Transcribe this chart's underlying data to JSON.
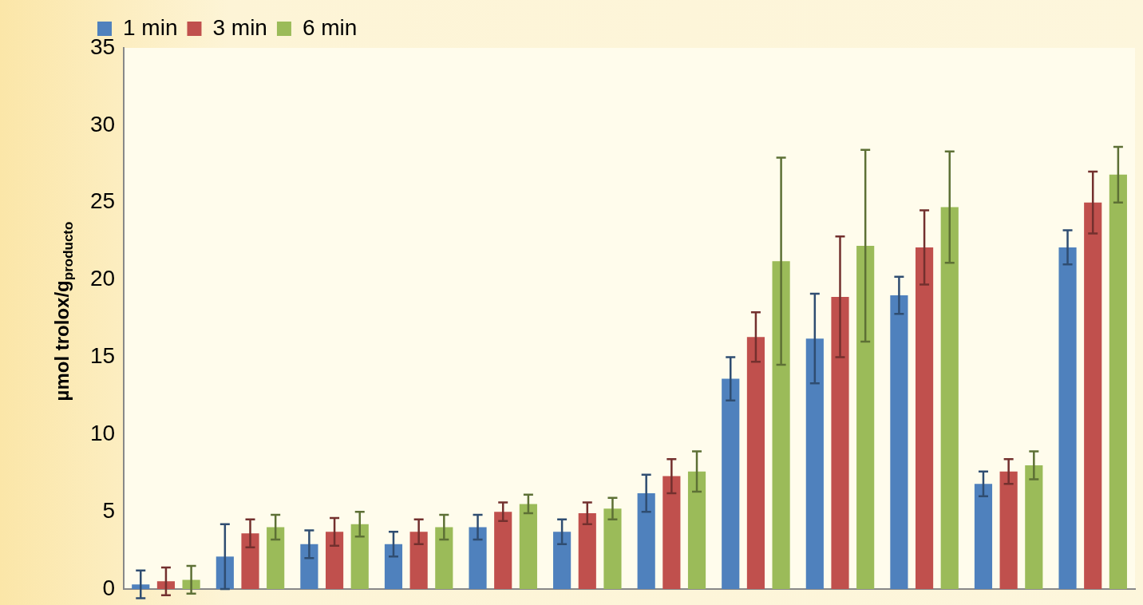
{
  "chart_data": {
    "type": "bar",
    "ylabel": "µmol trolox/g$_{producto}$",
    "categories": [
      null,
      null,
      null,
      null,
      null,
      null,
      null,
      null,
      null,
      null,
      null,
      null
    ],
    "series": [
      {
        "name": "1 min",
        "color": "#4f81bd",
        "values": [
          0.3,
          2.1,
          2.9,
          2.9,
          4.0,
          3.7,
          6.2,
          13.6,
          16.2,
          19.0,
          6.8,
          22.1
        ],
        "errors": [
          0.9,
          2.1,
          0.9,
          0.8,
          0.8,
          0.8,
          1.2,
          1.4,
          2.9,
          1.2,
          0.8,
          1.1
        ]
      },
      {
        "name": "3 min",
        "color": "#c0504d",
        "values": [
          0.5,
          3.6,
          3.7,
          3.7,
          5.0,
          4.9,
          7.3,
          16.3,
          18.9,
          22.1,
          7.6,
          25.0
        ],
        "errors": [
          0.9,
          0.9,
          0.9,
          0.8,
          0.6,
          0.7,
          1.1,
          1.6,
          3.9,
          2.4,
          0.8,
          2.0
        ]
      },
      {
        "name": "6 min",
        "color": "#9bbb59",
        "values": [
          0.6,
          4.0,
          4.2,
          4.0,
          5.5,
          5.2,
          7.6,
          21.2,
          22.2,
          24.7,
          8.0,
          26.8
        ],
        "errors": [
          0.9,
          0.8,
          0.8,
          0.8,
          0.6,
          0.7,
          1.3,
          6.7,
          6.2,
          3.6,
          0.9,
          1.8
        ]
      }
    ],
    "ylim": [
      0,
      35
    ],
    "yticks": [
      0,
      5,
      10,
      15,
      20,
      25,
      30,
      35
    ],
    "grid": false,
    "legend": "top left",
    "tick_labels": "y"
  }
}
